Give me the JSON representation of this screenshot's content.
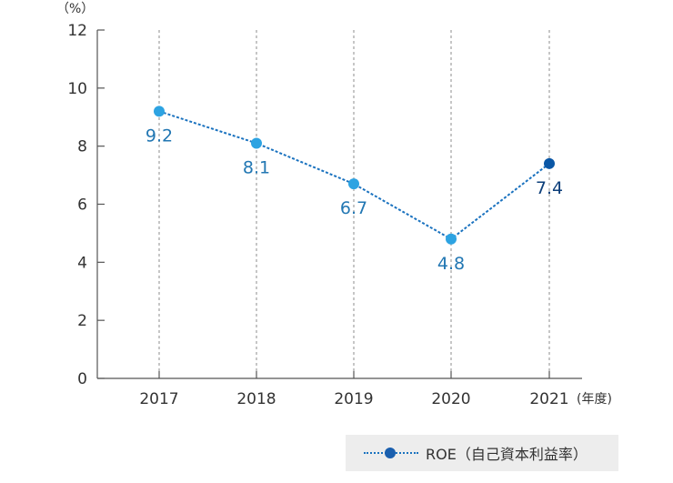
{
  "chart_data": {
    "type": "line",
    "categories": [
      "2017",
      "2018",
      "2019",
      "2020",
      "2021"
    ],
    "series": [
      {
        "name": "ROE（自己資本利益率）",
        "values": [
          9.2,
          8.1,
          6.7,
          4.8,
          7.4
        ]
      }
    ],
    "data_labels": [
      "9.2",
      "8.1",
      "6.7",
      "4.8",
      "7.4"
    ],
    "yticks": [
      "0",
      "2",
      "4",
      "6",
      "8",
      "10",
      "12"
    ],
    "ylim": [
      0,
      12
    ],
    "y_unit": "（%）",
    "x_unit": "(年度)",
    "grid": "vertical dotted",
    "legend_position": "bottom-right",
    "colors": {
      "line": "#1a72bf",
      "point": "#2da3e2",
      "point_last": "#0a57a6",
      "label": "#2277b3",
      "label_last": "#0d3f7a"
    }
  }
}
